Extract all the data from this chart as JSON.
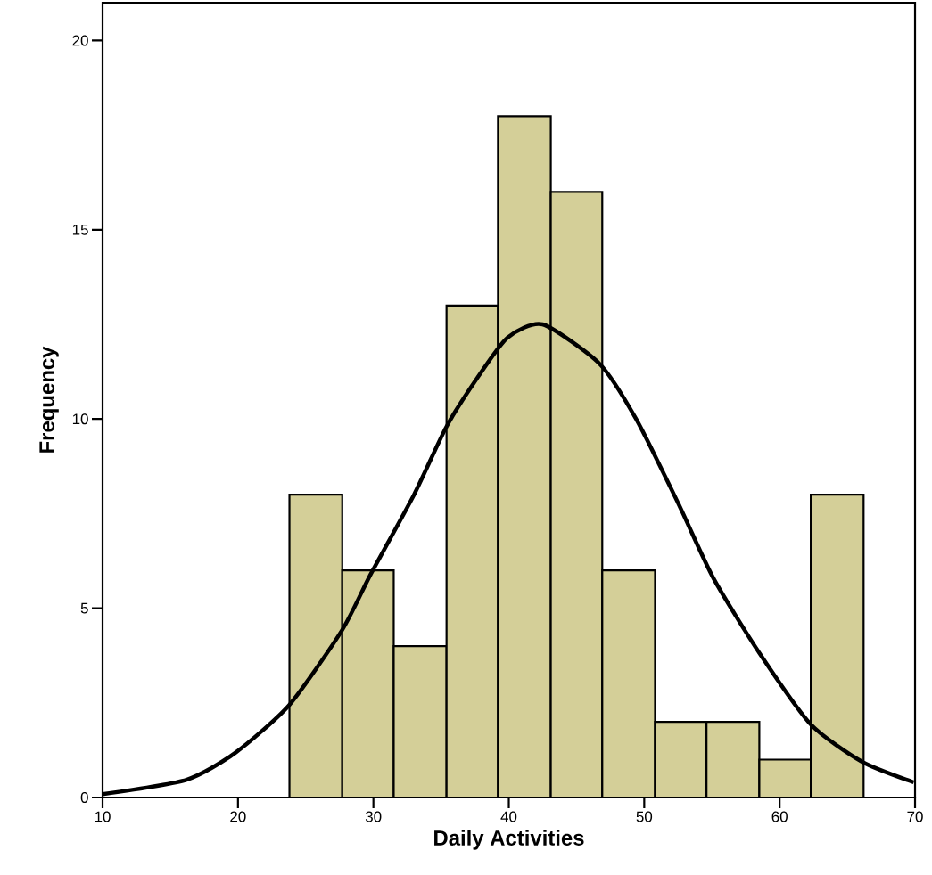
{
  "chart_data": {
    "type": "histogram",
    "xlabel": "Daily Activities",
    "ylabel": "Frequency",
    "xlim": [
      10,
      70
    ],
    "ylim": [
      0,
      21
    ],
    "xticks": [
      10,
      20,
      30,
      40,
      50,
      60,
      70
    ],
    "yticks": [
      0,
      5,
      10,
      15,
      20
    ],
    "series": [
      {
        "color": "#d4cf98",
        "bins": [
          23.8,
          27.7,
          31.5,
          35.4,
          39.2,
          43.1,
          46.9,
          50.8,
          54.6,
          58.5,
          62.3,
          66.2
        ],
        "values": [
          8,
          6,
          4,
          13,
          18,
          16,
          6,
          2,
          2,
          1,
          8
        ]
      },
      {
        "type": "line",
        "color": "#000000",
        "marker": "none",
        "x": [
          10,
          16.2,
          19.8,
          23.8,
          27.7,
          29.8,
          33.0,
          35.4,
          37.7,
          39.9,
          42.5,
          46.7,
          49.4,
          52.5,
          55.1,
          58.5,
          62.3,
          66.1,
          69.9
        ],
        "values": [
          0.09,
          0.47,
          1.18,
          2.45,
          4.43,
          5.9,
          8.0,
          9.8,
          11.1,
          12.15,
          12.5,
          11.46,
          10.0,
          7.78,
          5.8,
          3.82,
          1.93,
          0.94,
          0.4
        ]
      }
    ]
  }
}
